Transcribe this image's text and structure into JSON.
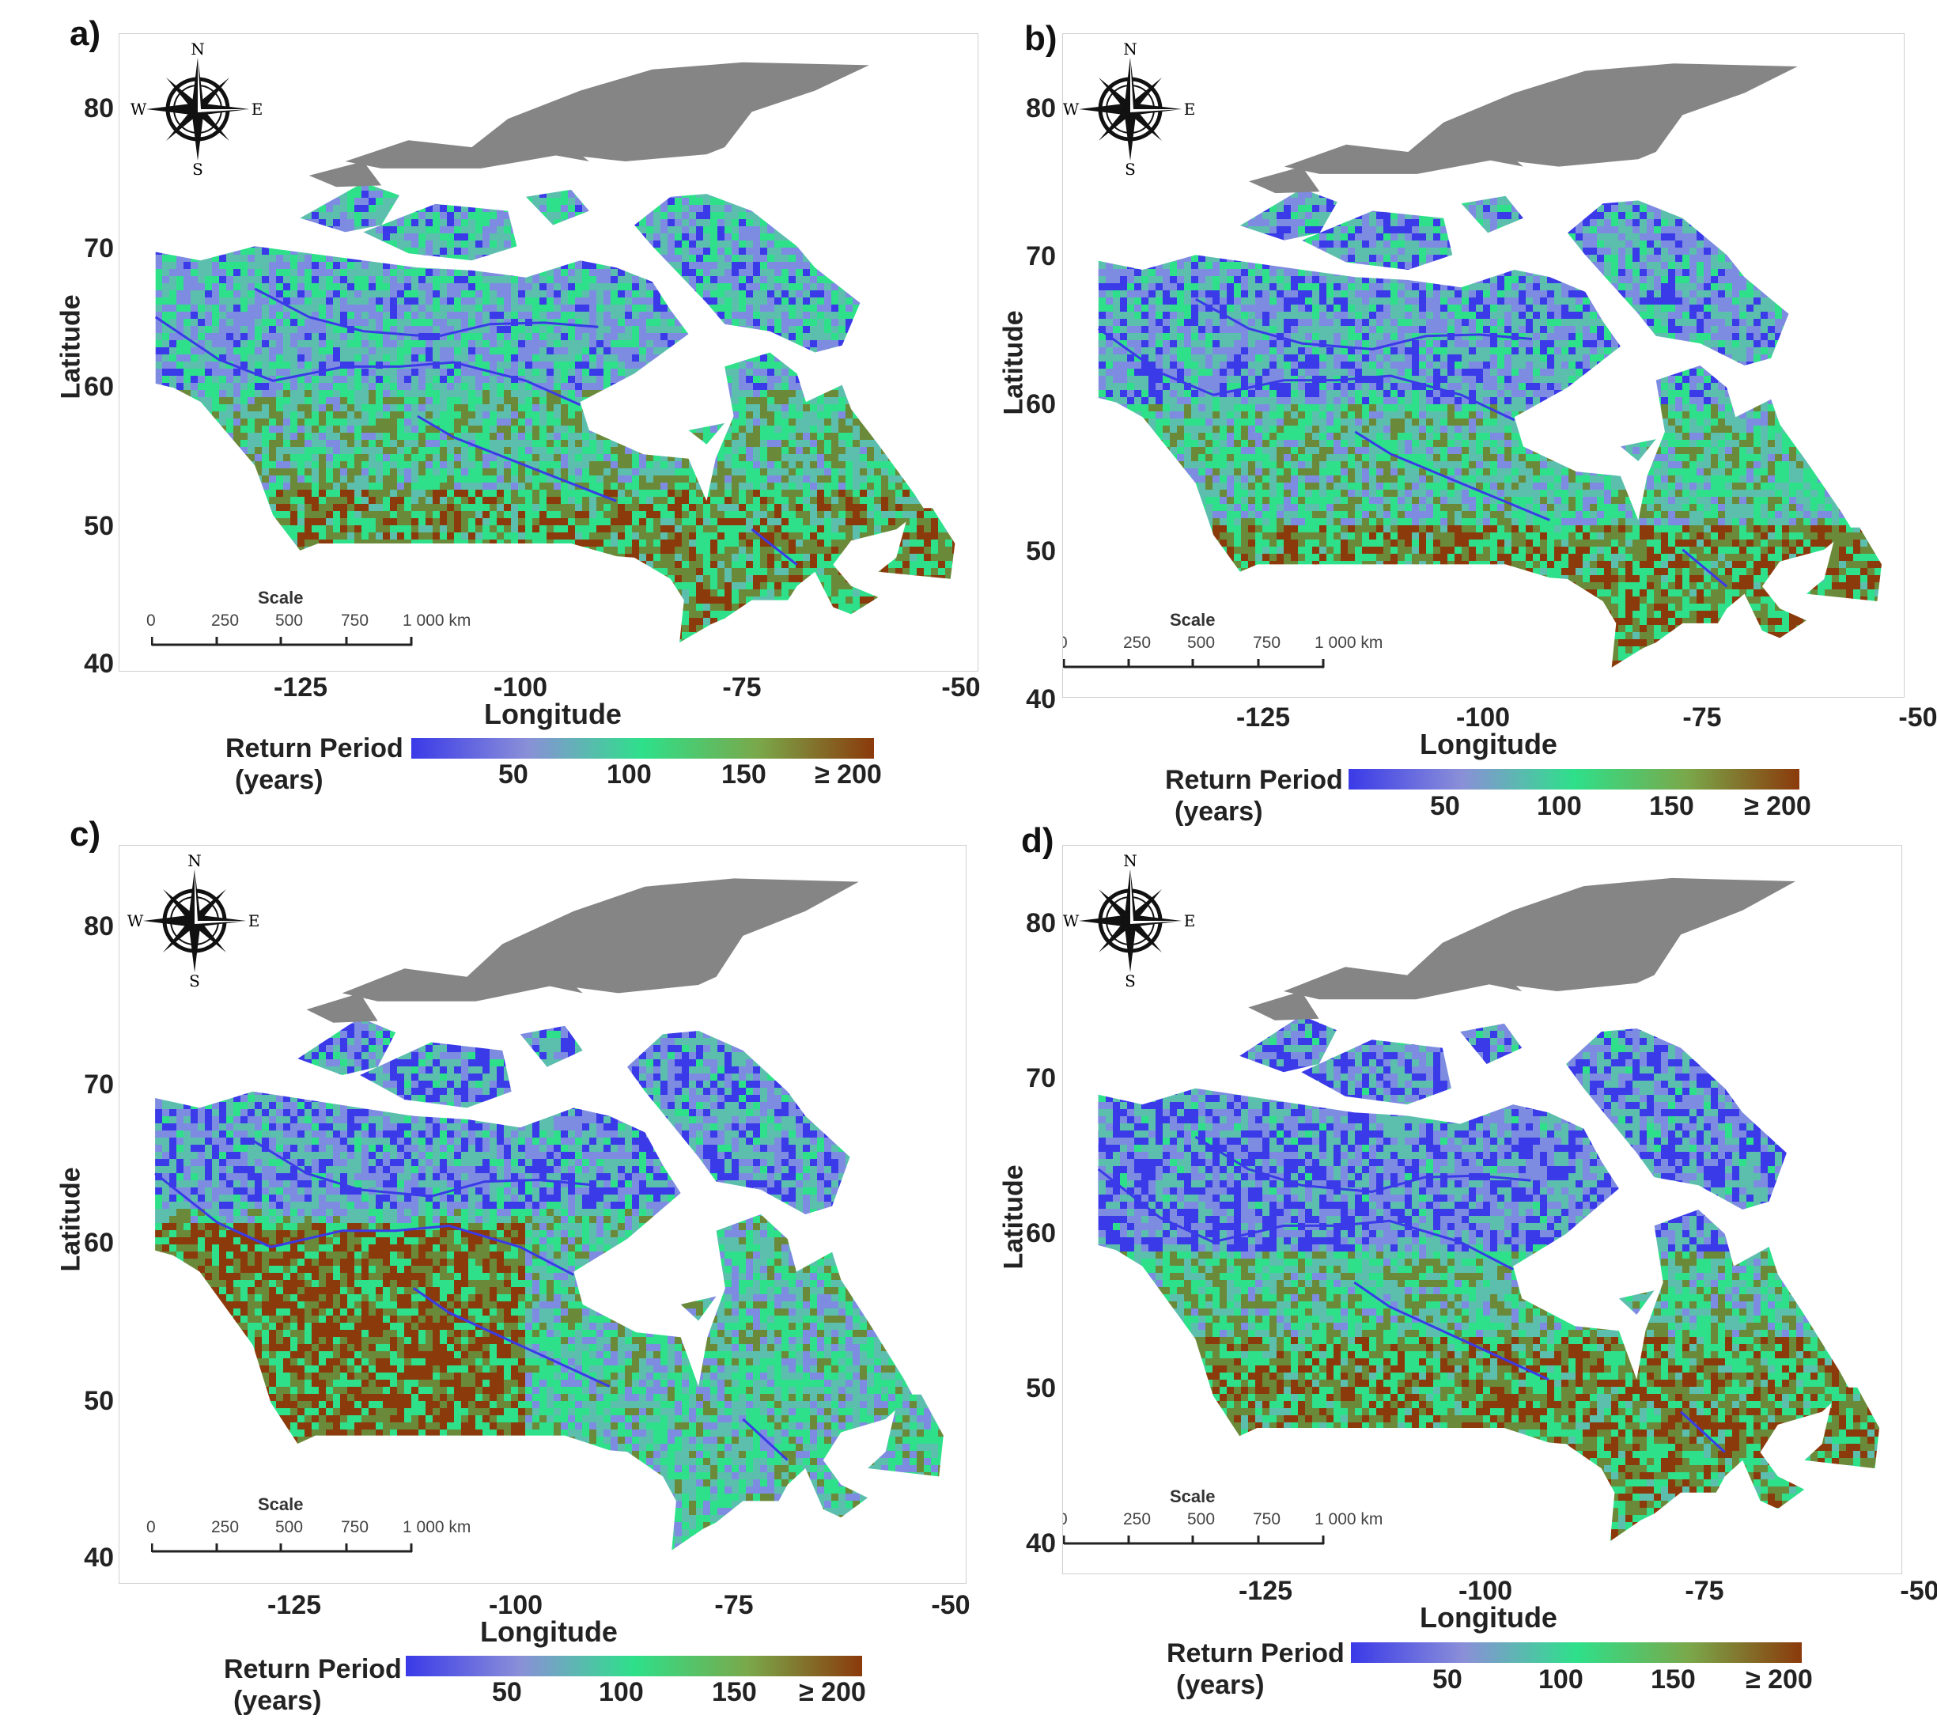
{
  "colors": {
    "arctic_gray": "#858585",
    "blue": "#3a3ae8",
    "periwinkle": "#7d8ce0",
    "teal": "#5cbfae",
    "green": "#2ee08a",
    "olive": "#6a8a3a",
    "brown": "#8b3a0b"
  },
  "colorbar": {
    "title_line1": "Return Period",
    "title_line2": "(years)",
    "ticks": [
      "50",
      "100",
      "150",
      "≥ 200"
    ],
    "stops": [
      "#3a3ae8",
      "#8a8fd8",
      "#2ee08a",
      "#7aa84a",
      "#8b3a0b"
    ]
  },
  "axes": {
    "xlabel": "Longitude",
    "ylabel": "Latitude",
    "xticks": [
      "-125",
      "-100",
      "-75",
      "-50"
    ],
    "yticks": [
      "80",
      "70",
      "60",
      "50",
      "40"
    ],
    "xlim": [
      -145,
      -50
    ],
    "ylim": [
      40,
      85
    ]
  },
  "compass": {
    "n": "N",
    "s": "S",
    "e": "E",
    "w": "W",
    "icon": "compass-rose-icon"
  },
  "scalebar": {
    "title": "Scale",
    "ticks": [
      "0",
      "250",
      "500",
      "750",
      "1 000 km"
    ]
  },
  "panels": [
    {
      "letter": "a)",
      "dominant": "mixed"
    },
    {
      "letter": "b)",
      "dominant": "mixed-blue"
    },
    {
      "letter": "c)",
      "dominant": "brown-west"
    },
    {
      "letter": "d)",
      "dominant": "blue-north"
    }
  ]
}
